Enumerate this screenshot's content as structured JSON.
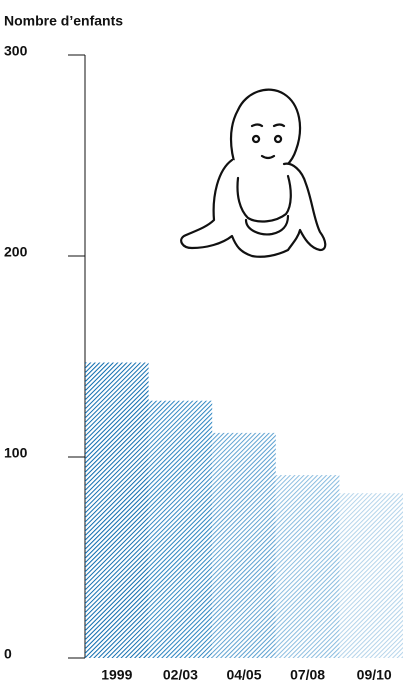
{
  "chart_data": {
    "type": "bar",
    "title": "Nombre d’enfants",
    "categories": [
      "1999",
      "02/03",
      "04/05",
      "07/08",
      "09/10"
    ],
    "values": [
      147,
      128,
      112,
      91,
      82
    ],
    "colors": [
      "#0b6aae",
      "#2a83c0",
      "#5a9fd0",
      "#88bbdf",
      "#b3d3ea"
    ],
    "ylim": [
      0,
      300
    ],
    "yticks": [
      0,
      100,
      200,
      300
    ],
    "grid": false
  }
}
